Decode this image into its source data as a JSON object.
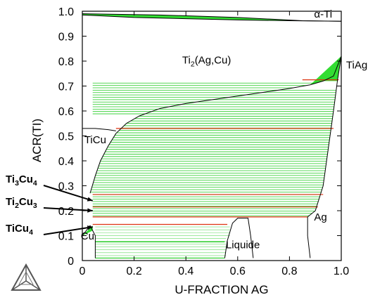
{
  "chart_data": {
    "type": "line",
    "title": "",
    "xlabel": "U-FRACTION AG",
    "ylabel": "ACR(TI)",
    "xlim": [
      0,
      1
    ],
    "ylim": [
      0,
      1
    ],
    "xticks": [
      "0",
      "0.2",
      "0.4",
      "0.6",
      "0.8",
      "1.0"
    ],
    "yticks": [
      "0",
      "0.1",
      "0.2",
      "0.3",
      "0.4",
      "0.5",
      "0.6",
      "0.7",
      "0.8",
      "0.9",
      "1.0"
    ],
    "grid": false,
    "colors": {
      "tie_line_green": "#22cc22",
      "tie_line_red": "#dd3311",
      "fill_green": "#33dd33",
      "boundary": "#000000"
    },
    "boundaries": [
      {
        "name": "alpha-Ti / Ti2(Ag,Cu) upper",
        "points": [
          [
            0,
            0.99
          ],
          [
            0.3,
            0.985
          ],
          [
            0.6,
            0.975
          ],
          [
            0.85,
            0.962
          ],
          [
            1.0,
            0.96
          ]
        ]
      },
      {
        "name": "alpha-Ti / Ti2(Ag,Cu) lower",
        "points": [
          [
            0,
            0.985
          ],
          [
            0.2,
            0.975
          ],
          [
            0.4,
            0.97
          ],
          [
            0.6,
            0.965
          ],
          [
            0.8,
            0.962
          ],
          [
            1.0,
            0.96
          ]
        ]
      },
      {
        "name": "Ti2(Ag,Cu) two-phase upper",
        "points": [
          [
            0.03,
            0.27
          ],
          [
            0.05,
            0.34
          ],
          [
            0.07,
            0.4
          ],
          [
            0.1,
            0.46
          ],
          [
            0.13,
            0.51
          ],
          [
            0.17,
            0.55
          ],
          [
            0.22,
            0.58
          ],
          [
            0.3,
            0.61
          ],
          [
            0.4,
            0.63
          ],
          [
            0.5,
            0.645
          ],
          [
            0.6,
            0.66
          ],
          [
            0.7,
            0.675
          ],
          [
            0.8,
            0.69
          ],
          [
            0.88,
            0.705
          ],
          [
            0.93,
            0.72
          ],
          [
            0.97,
            0.74
          ],
          [
            1.0,
            0.82
          ]
        ]
      },
      {
        "name": "two-phase right side",
        "points": [
          [
            1.0,
            0.82
          ],
          [
            0.985,
            0.72
          ],
          [
            0.97,
            0.6
          ],
          [
            0.95,
            0.45
          ],
          [
            0.93,
            0.3
          ],
          [
            0.9,
            0.2
          ],
          [
            0.87,
            0.175
          ]
        ]
      },
      {
        "name": "TiCu boundary",
        "points": [
          [
            0,
            0.53
          ],
          [
            0.05,
            0.53
          ],
          [
            0.1,
            0.525
          ],
          [
            0.13,
            0.52
          ]
        ]
      },
      {
        "name": "Liquide region",
        "points": [
          [
            0.55,
            0.01
          ],
          [
            0.56,
            0.08
          ],
          [
            0.58,
            0.15
          ],
          [
            0.6,
            0.17
          ],
          [
            0.64,
            0.17
          ],
          [
            0.65,
            0.1
          ],
          [
            0.66,
            0.01
          ]
        ]
      },
      {
        "name": "Ag boundary",
        "points": [
          [
            0.87,
            0.175
          ],
          [
            0.87,
            0.1
          ],
          [
            0.88,
            0.01
          ]
        ]
      },
      {
        "name": "Cu boundary",
        "points": [
          [
            0,
            0.1
          ],
          [
            0.03,
            0.14
          ],
          [
            0.05,
            0.1
          ],
          [
            0.05,
            0.01
          ]
        ]
      }
    ],
    "tie_lines": [
      {
        "y": 0.725,
        "x0": 0.85,
        "x1": 0.99,
        "color": "red"
      },
      {
        "y": 0.53,
        "x0": 0.13,
        "x1": 0.97,
        "color": "red"
      },
      {
        "y": 0.265,
        "x0": 0.04,
        "x1": 0.93,
        "color": "red"
      },
      {
        "y": 0.215,
        "x0": 0.04,
        "x1": 0.91,
        "color": "red"
      },
      {
        "y": 0.175,
        "x0": 0.04,
        "x1": 0.87,
        "color": "red"
      },
      {
        "y": 0.145,
        "x0": 0.04,
        "x1": 0.56,
        "color": "red"
      },
      {
        "y": 0.075,
        "x0": 0.05,
        "x1": 0.55,
        "color": "green"
      },
      {
        "y": 0.01,
        "x0": 0.05,
        "x1": 0.55,
        "color": "green"
      }
    ],
    "phase_labels": [
      {
        "text": "α-Ti",
        "x": 0.93,
        "y": 0.975
      },
      {
        "text": "Ti2(Ag,Cu)",
        "x": 0.48,
        "y": 0.79
      },
      {
        "text": "TiAg",
        "x": 1.06,
        "y": 0.77
      },
      {
        "text": "TiCu",
        "x": 0.05,
        "y": 0.47
      },
      {
        "text": "Ag",
        "x": 0.92,
        "y": 0.16
      },
      {
        "text": "Liquide",
        "x": 0.62,
        "y": 0.05
      },
      {
        "text": "Cu",
        "x": 0.02,
        "y": 0.085
      }
    ],
    "annotations": [
      {
        "text": "Ti3Cu4",
        "points_to": [
          0.04,
          0.24
        ]
      },
      {
        "text": "Ti2Cu3",
        "points_to": [
          0.04,
          0.2
        ]
      },
      {
        "text": "TiCu4",
        "points_to": [
          0.04,
          0.135
        ]
      }
    ]
  }
}
